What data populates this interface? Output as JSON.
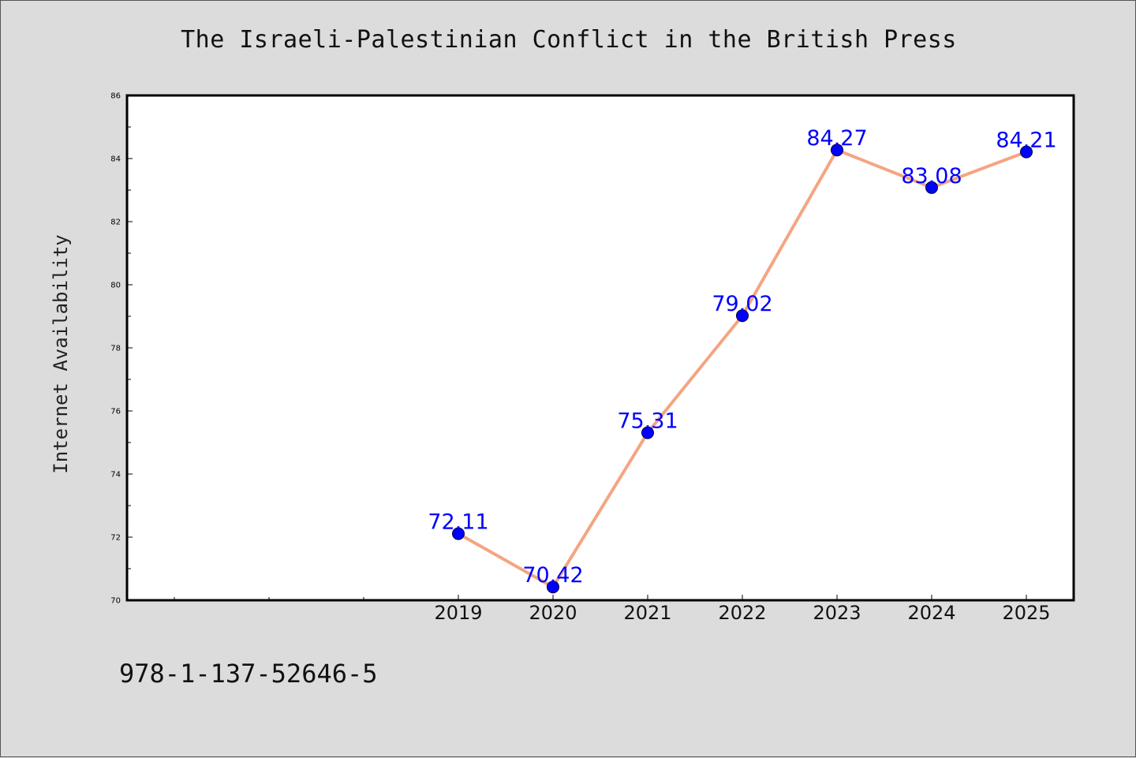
{
  "chart_data": {
    "type": "line",
    "title": "The Israeli-Palestinian Conflict in the British Press",
    "xlabel": "",
    "ylabel": "Internet Availability",
    "x": [
      2019,
      2020,
      2021,
      2022,
      2023,
      2024,
      2025
    ],
    "series": [
      {
        "values": [
          72.11,
          70.42,
          75.31,
          79.02,
          84.27,
          83.08,
          84.21
        ],
        "labels": [
          "72.11",
          "70.42",
          "75.31",
          "79.02",
          "84.27",
          "83.08",
          "84.21"
        ]
      }
    ],
    "xlim": [
      2015.5,
      2025.5
    ],
    "ylim": [
      70,
      86
    ],
    "y_major_ticks": [
      70,
      72,
      74,
      76,
      78,
      80,
      82,
      84,
      86
    ],
    "x_tick_labels": [
      "2019",
      "2020",
      "2021",
      "2022",
      "2023",
      "2024",
      "2025"
    ],
    "grid": false,
    "legend": "none",
    "colors": {
      "line": "#f4a582",
      "marker": "#0000ff",
      "data_label": "#0000ff"
    }
  },
  "footer": {
    "isbn": "978-1-137-52646-5"
  }
}
